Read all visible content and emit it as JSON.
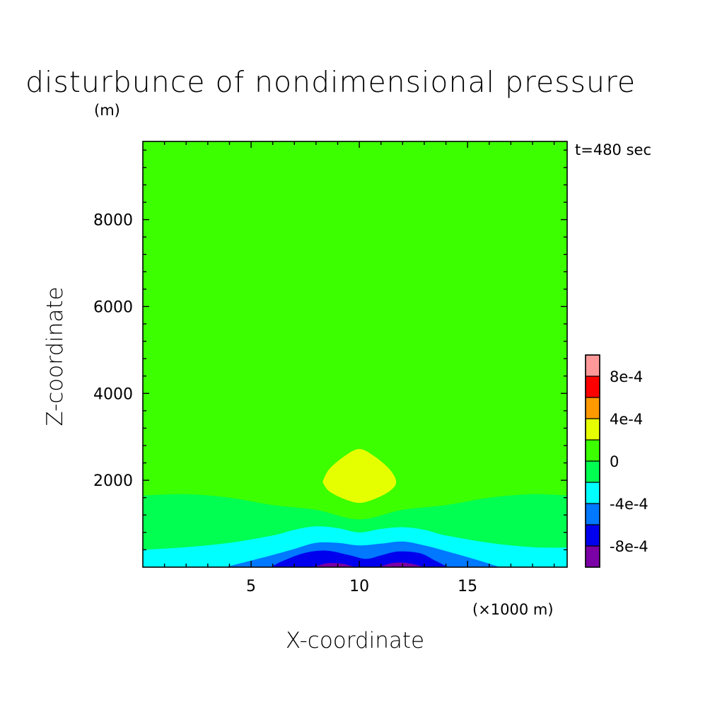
{
  "chart_data": {
    "type": "heatmap",
    "title": "disturbunce of nondimensional pressure",
    "xlabel": "X-coordinate",
    "ylabel": "Z-coordinate",
    "x_unit": "(×1000 m)",
    "y_unit": "(m)",
    "time_label": "t=480 sec",
    "xlim": [
      0,
      19.6
    ],
    "ylim": [
      0,
      9800
    ],
    "x_ticks": [
      5,
      10,
      15
    ],
    "x_tick_labels": [
      "5",
      "10",
      "15"
    ],
    "y_ticks": [
      2000,
      4000,
      6000,
      8000
    ],
    "y_tick_labels": [
      "2000",
      "4000",
      "6000",
      "8000"
    ],
    "colorbar": {
      "levels": [
        -0.001,
        -0.0008,
        -0.0006,
        -0.0004,
        -0.0002,
        0,
        0.0002,
        0.0004,
        0.0006,
        0.0008,
        0.001
      ],
      "colors": [
        "#7b00a6",
        "#0000ee",
        "#0078ff",
        "#00ffff",
        "#00ff50",
        "#3cff00",
        "#e6ff00",
        "#ff9900",
        "#ff0000",
        "#ff9999"
      ],
      "tick_labels": [
        "8e-4",
        "4e-4",
        "0",
        "-4e-4",
        "-8e-4"
      ],
      "tick_values": [
        0.0008,
        0.0004,
        0,
        -0.0004,
        -0.0008
      ]
    },
    "contour_bands": [
      {
        "name": "0 to 2e-4 background",
        "color": "#3cff00",
        "x": [
          0,
          19.6
        ],
        "z_top": [
          9800,
          9800
        ],
        "z_bottom": [
          0,
          0
        ]
      },
      {
        "name": "-2e-4 to 0",
        "color": "#00ff50",
        "x": [
          0,
          2,
          4,
          6,
          8,
          10,
          12,
          14,
          16,
          18,
          19.6
        ],
        "z_top": [
          1650,
          1680,
          1600,
          1430,
          1320,
          1100,
          1320,
          1430,
          1600,
          1680,
          1650
        ]
      },
      {
        "name": "-4e-4 to -2e-4",
        "color": "#00ffff",
        "x": [
          0,
          2,
          4,
          6,
          7,
          8,
          9,
          10,
          11,
          12,
          13,
          14,
          16,
          18,
          19.6
        ],
        "z_top": [
          400,
          460,
          560,
          730,
          860,
          940,
          900,
          800,
          880,
          920,
          860,
          730,
          560,
          460,
          450
        ]
      },
      {
        "name": "-6e-4 to -4e-4",
        "color": "#0078ff",
        "x": [
          3.8,
          5,
          6,
          7,
          8,
          9,
          10,
          11,
          12,
          13,
          14,
          15,
          16,
          16.5
        ],
        "z_top": [
          0,
          150,
          280,
          420,
          560,
          560,
          500,
          540,
          590,
          500,
          370,
          230,
          80,
          0
        ]
      },
      {
        "name": "-8e-4 to -6e-4",
        "color": "#0000ee",
        "x": [
          5.9,
          6.5,
          7.5,
          8.5,
          9.5,
          10.3,
          11,
          11.8,
          12.8,
          13.5,
          14.1
        ],
        "z_top": [
          0,
          150,
          330,
          380,
          280,
          190,
          270,
          360,
          320,
          150,
          0
        ]
      },
      {
        "name": "-1e-3 to -8e-4 left",
        "color": "#7b00a6",
        "x": [
          7.9,
          8.5,
          9.2,
          9.8
        ],
        "z_top": [
          0,
          90,
          80,
          0
        ]
      },
      {
        "name": "-1e-3 to -8e-4 right",
        "color": "#7b00a6",
        "x": [
          10.9,
          11.6,
          12.3,
          13.0
        ],
        "z_top": [
          0,
          100,
          90,
          0
        ]
      }
    ],
    "positive_anomaly": {
      "name": "2e-4 to 4e-4",
      "color": "#e6ff00",
      "x": [
        8.3,
        8.6,
        9.3,
        10.0,
        10.7,
        11.4,
        11.7,
        11.4,
        10.7,
        10.0,
        9.3,
        8.6,
        8.3
      ],
      "z": [
        1960,
        2250,
        2550,
        2720,
        2550,
        2250,
        1960,
        1750,
        1570,
        1480,
        1570,
        1750,
        1960
      ]
    }
  }
}
